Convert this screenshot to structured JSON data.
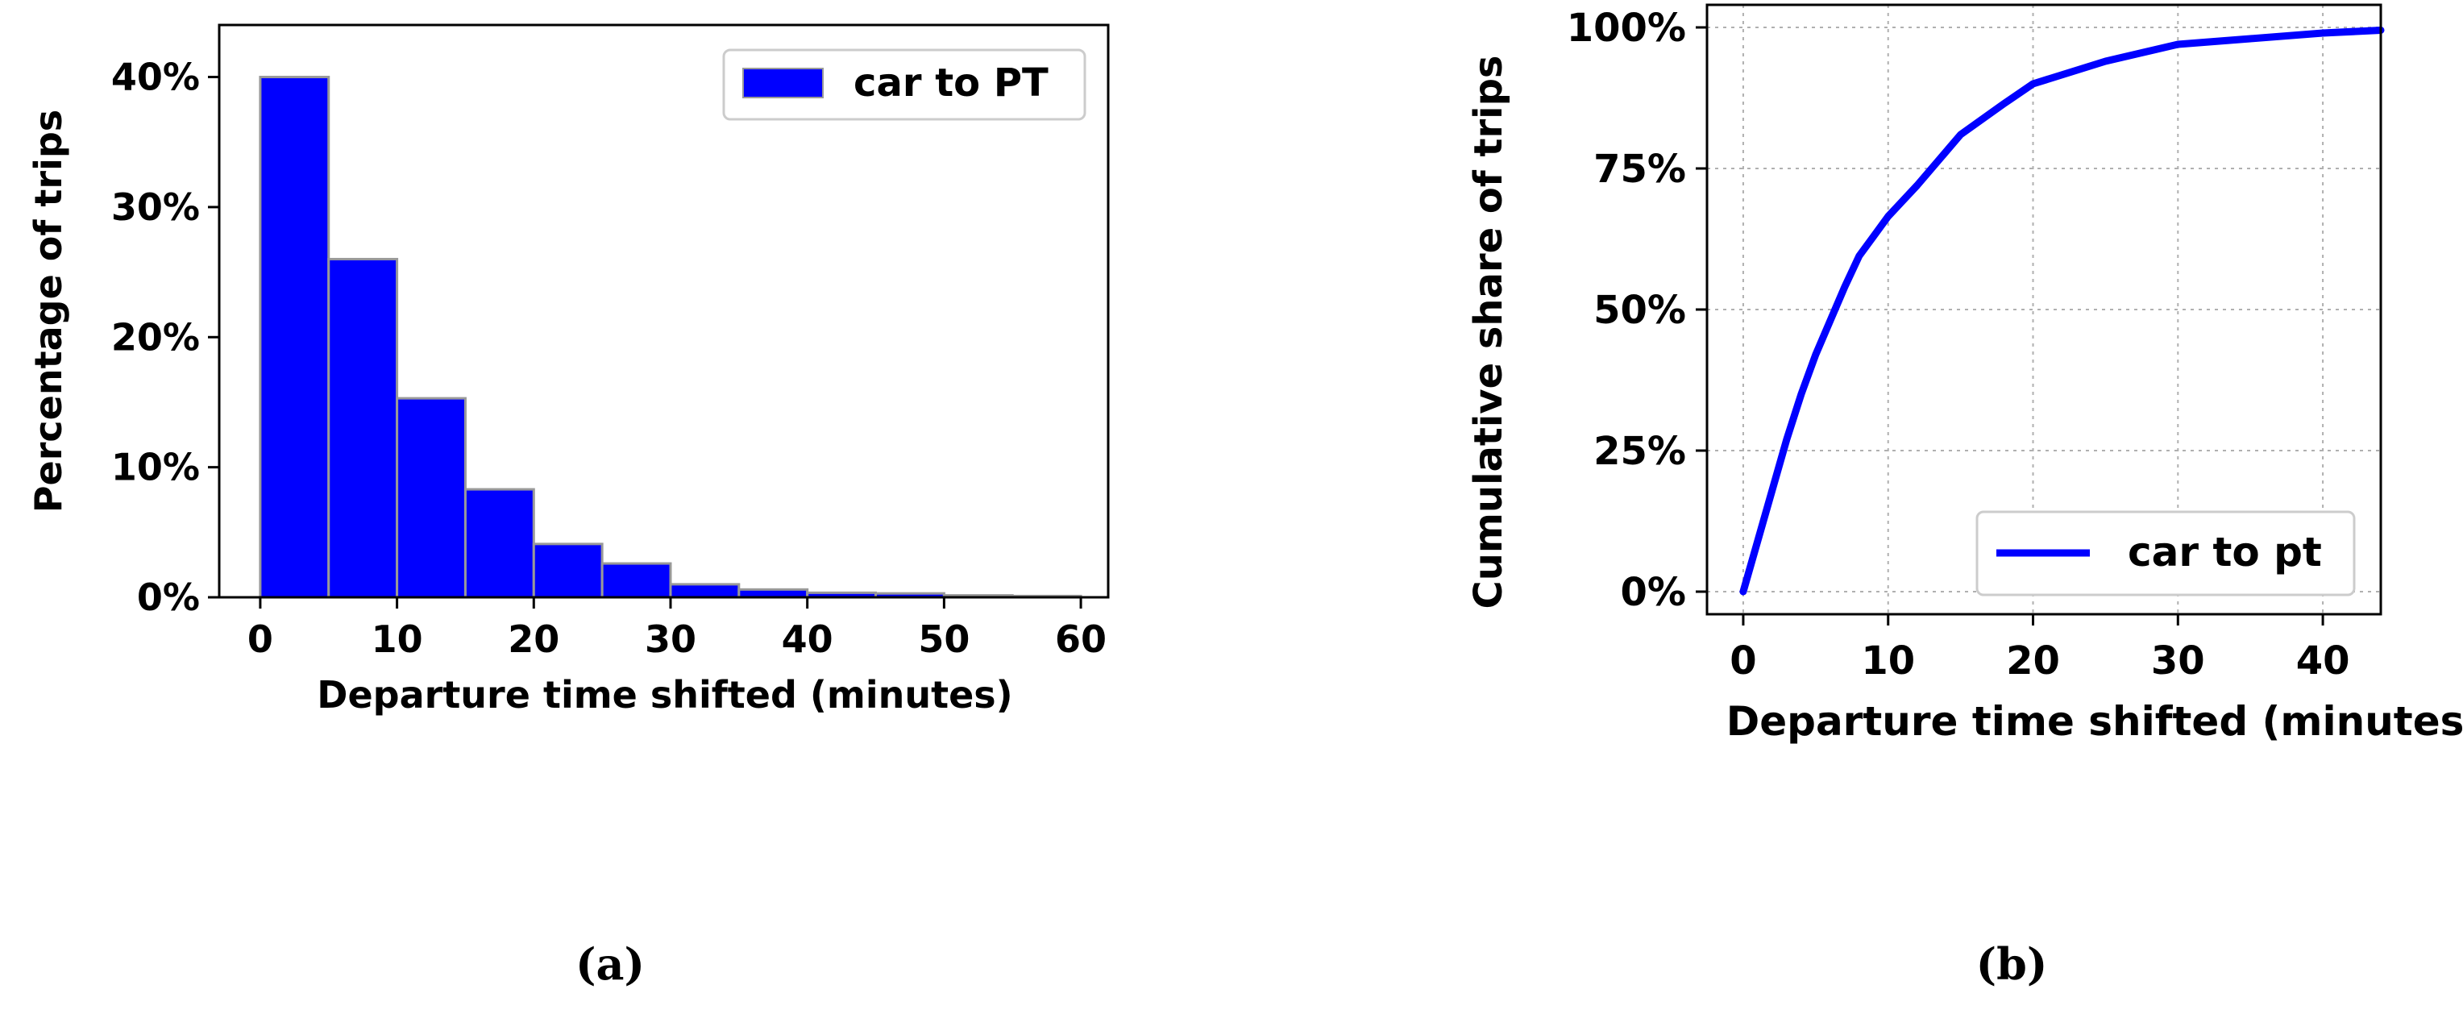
{
  "chart_data": [
    {
      "type": "bar",
      "panel_label": "(a)",
      "xlabel": "Departure time shifted (minutes)",
      "ylabel": "Percentage of trips",
      "bin_edges": [
        0,
        5,
        10,
        15,
        20,
        25,
        30,
        35,
        40,
        45,
        50,
        55,
        60
      ],
      "values": [
        40.0,
        26.0,
        15.3,
        8.3,
        4.1,
        2.6,
        1.0,
        0.6,
        0.35,
        0.3,
        0.15,
        0.1
      ],
      "xlim": [
        -3,
        62
      ],
      "ylim": [
        0,
        44
      ],
      "xticks": [
        0,
        10,
        20,
        30,
        40,
        50,
        60
      ],
      "xtick_labels": [
        "0",
        "10",
        "20",
        "30",
        "40",
        "50",
        "60"
      ],
      "yticks": [
        0,
        10,
        20,
        30,
        40
      ],
      "ytick_labels": [
        "0%",
        "10%",
        "20%",
        "30%",
        "40%"
      ],
      "grid": false,
      "legend": {
        "label": "car to PT",
        "position": "top-right"
      },
      "color": "#0000ff",
      "edge_color": "#999999"
    },
    {
      "type": "line",
      "panel_label": "(b)",
      "xlabel": "Departure time shifted (minutes)",
      "ylabel": "Cumulative share of trips",
      "series": [
        {
          "name": "car to pt",
          "x": [
            0,
            1,
            2,
            3,
            4,
            5,
            6,
            7,
            8,
            9,
            10,
            12,
            15,
            18,
            20,
            25,
            30,
            35,
            40,
            44
          ],
          "y": [
            0,
            9,
            18,
            27,
            35,
            42,
            48,
            54,
            59.5,
            63,
            66.5,
            72,
            81,
            86.5,
            90,
            94,
            97,
            98,
            99,
            99.5
          ]
        }
      ],
      "xlim": [
        -2.5,
        44
      ],
      "ylim": [
        -4,
        104
      ],
      "xticks": [
        0,
        10,
        20,
        30,
        40
      ],
      "xtick_labels": [
        "0",
        "10",
        "20",
        "30",
        "40"
      ],
      "yticks": [
        0,
        25,
        50,
        75,
        100
      ],
      "ytick_labels": [
        "0%",
        "25%",
        "50%",
        "75%",
        "100%"
      ],
      "grid": true,
      "legend": {
        "label": "car to pt",
        "position": "bottom-right"
      },
      "color": "#0000ff"
    }
  ]
}
